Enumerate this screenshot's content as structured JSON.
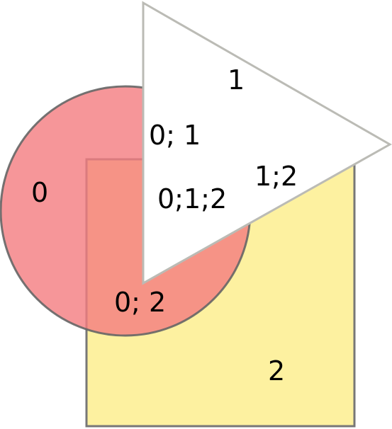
{
  "diagram": {
    "shapes": {
      "circle": {
        "id": "0",
        "fill": "#f47c80",
        "stroke": "#666666",
        "opacity": 0.8
      },
      "square": {
        "id": "2",
        "fill": "#fdf1a0",
        "stroke": "#777777",
        "opacity": 1
      },
      "triangle": {
        "id": "1",
        "fill": "#ffffff",
        "stroke": "#bbbbb5",
        "opacity": 1
      }
    },
    "labels": {
      "circle_only": "0",
      "triangle_only": "1",
      "square_only": "2",
      "circle_triangle": "0; 1",
      "circle_square": "0; 2",
      "triangle_square": "1;2",
      "all_three": "0;1;2"
    }
  }
}
